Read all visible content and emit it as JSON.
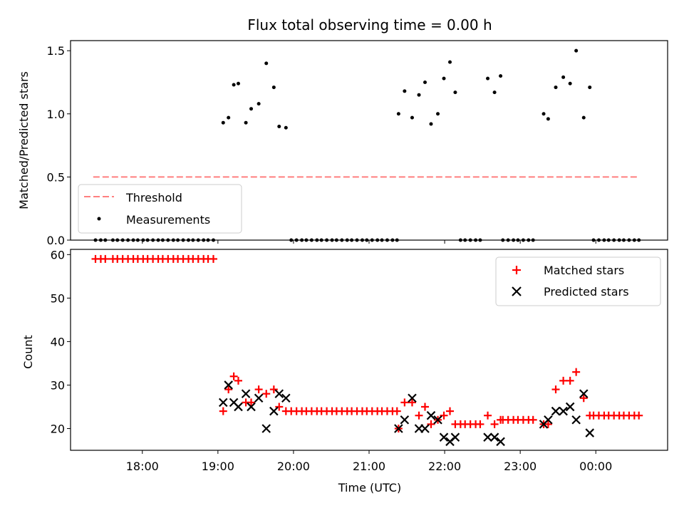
{
  "chart_data": [
    {
      "type": "scatter",
      "title": "Flux total observing time = 0.00 h",
      "xlabel": "",
      "ylabel": "Matched/Predicted stars",
      "x_unit": "hours since 00:00 UTC (day of start)",
      "xlim": [
        17.05,
        24.95
      ],
      "ylim": [
        0,
        1.58
      ],
      "yticks": [
        0.0,
        0.5,
        1.0,
        1.5
      ],
      "ytick_labels": [
        "0.0",
        "0.5",
        "1.0",
        "1.5"
      ],
      "threshold": {
        "name": "Threshold",
        "value": 0.5,
        "x_range": [
          17.35,
          24.55
        ],
        "color": "#ff7f7f"
      },
      "series": [
        {
          "name": "Measurements",
          "color": "#000000",
          "x": [
            17.38,
            17.45,
            17.51,
            17.61,
            17.67,
            17.74,
            17.81,
            17.88,
            17.94,
            18.01,
            18.07,
            18.14,
            18.21,
            18.27,
            18.34,
            18.41,
            18.47,
            18.54,
            18.61,
            18.67,
            18.74,
            18.81,
            18.87,
            18.94,
            19.07,
            19.14,
            19.21,
            19.27,
            19.37,
            19.44,
            19.54,
            19.64,
            19.74,
            19.81,
            19.9,
            19.97,
            20.04,
            20.11,
            20.17,
            20.24,
            20.31,
            20.37,
            20.44,
            20.51,
            20.57,
            20.64,
            20.71,
            20.77,
            20.84,
            20.91,
            20.97,
            21.04,
            21.11,
            21.17,
            21.24,
            21.31,
            21.37,
            21.39,
            21.47,
            21.57,
            21.66,
            21.74,
            21.82,
            21.91,
            21.99,
            22.07,
            22.14,
            22.21,
            22.27,
            22.34,
            22.41,
            22.47,
            22.57,
            22.66,
            22.74,
            22.77,
            22.84,
            22.91,
            22.97,
            23.04,
            23.11,
            23.17,
            23.31,
            23.37,
            23.47,
            23.57,
            23.66,
            23.74,
            23.84,
            23.92,
            23.97,
            24.04,
            24.11,
            24.17,
            24.24,
            24.31,
            24.37,
            24.44,
            24.51,
            24.57
          ],
          "y": [
            0,
            0,
            0,
            0,
            0,
            0,
            0,
            0,
            0,
            0,
            0,
            0,
            0,
            0,
            0,
            0,
            0,
            0,
            0,
            0,
            0,
            0,
            0,
            0,
            0.93,
            0.97,
            1.23,
            1.24,
            0.93,
            1.04,
            1.08,
            1.4,
            1.21,
            0.9,
            0.89,
            0,
            0,
            0,
            0,
            0,
            0,
            0,
            0,
            0,
            0,
            0,
            0,
            0,
            0,
            0,
            0,
            0,
            0,
            0,
            0,
            0,
            0,
            1.0,
            1.18,
            0.97,
            1.15,
            1.25,
            0.92,
            1.0,
            1.28,
            1.41,
            1.17,
            0,
            0,
            0,
            0,
            0,
            1.28,
            1.17,
            1.3,
            0,
            0,
            0,
            0,
            0,
            0,
            0,
            1.0,
            0.96,
            1.21,
            1.29,
            1.24,
            1.5,
            0.97,
            1.21,
            0,
            0,
            0,
            0,
            0,
            0,
            0,
            0,
            0,
            0
          ]
        }
      ],
      "legend": {
        "position": "lower-left",
        "entries": [
          "Threshold",
          "Measurements"
        ]
      }
    },
    {
      "type": "scatter",
      "title": "",
      "xlabel": "Time (UTC)",
      "ylabel": "Count",
      "x_unit": "hours since 00:00 UTC (day of start)",
      "xlim": [
        17.05,
        24.95
      ],
      "ylim": [
        15,
        61.2
      ],
      "yticks": [
        20,
        30,
        40,
        50,
        60
      ],
      "ytick_labels": [
        "20",
        "30",
        "40",
        "50",
        "60"
      ],
      "xticks": [
        18,
        19,
        20,
        21,
        22,
        23,
        24
      ],
      "xtick_labels": [
        "18:00",
        "19:00",
        "20:00",
        "21:00",
        "22:00",
        "23:00",
        "00:00"
      ],
      "series": [
        {
          "name": "Matched stars",
          "marker": "plus",
          "color": "#ff0000",
          "x": [
            17.38,
            17.45,
            17.51,
            17.61,
            17.67,
            17.74,
            17.81,
            17.88,
            17.94,
            18.01,
            18.07,
            18.14,
            18.21,
            18.27,
            18.34,
            18.41,
            18.47,
            18.54,
            18.61,
            18.67,
            18.74,
            18.81,
            18.87,
            18.94,
            19.07,
            19.14,
            19.21,
            19.27,
            19.37,
            19.44,
            19.54,
            19.64,
            19.74,
            19.81,
            19.9,
            19.97,
            20.04,
            20.11,
            20.17,
            20.24,
            20.31,
            20.37,
            20.44,
            20.51,
            20.57,
            20.64,
            20.71,
            20.77,
            20.84,
            20.91,
            20.97,
            21.04,
            21.11,
            21.17,
            21.24,
            21.31,
            21.37,
            21.39,
            21.47,
            21.57,
            21.66,
            21.74,
            21.82,
            21.91,
            21.99,
            22.07,
            22.14,
            22.21,
            22.27,
            22.34,
            22.41,
            22.47,
            22.57,
            22.66,
            22.74,
            22.77,
            22.84,
            22.91,
            22.97,
            23.04,
            23.11,
            23.17,
            23.31,
            23.37,
            23.47,
            23.57,
            23.66,
            23.74,
            23.84,
            23.92,
            23.97,
            24.04,
            24.11,
            24.17,
            24.24,
            24.31,
            24.37,
            24.44,
            24.51,
            24.57
          ],
          "y": [
            59,
            59,
            59,
            59,
            59,
            59,
            59,
            59,
            59,
            59,
            59,
            59,
            59,
            59,
            59,
            59,
            59,
            59,
            59,
            59,
            59,
            59,
            59,
            59,
            24,
            29,
            32,
            31,
            26,
            26,
            29,
            28,
            29,
            25,
            24,
            24,
            24,
            24,
            24,
            24,
            24,
            24,
            24,
            24,
            24,
            24,
            24,
            24,
            24,
            24,
            24,
            24,
            24,
            24,
            24,
            24,
            24,
            20,
            26,
            26,
            23,
            25,
            21,
            22,
            23,
            24,
            21,
            21,
            21,
            21,
            21,
            21,
            23,
            21,
            22,
            22,
            22,
            22,
            22,
            22,
            22,
            22,
            21,
            21,
            29,
            31,
            31,
            33,
            27,
            23,
            23,
            23,
            23,
            23,
            23,
            23,
            23,
            23,
            23,
            23
          ]
        },
        {
          "name": "Predicted stars",
          "marker": "x",
          "color": "#000000",
          "x": [
            19.07,
            19.14,
            19.21,
            19.27,
            19.37,
            19.44,
            19.54,
            19.64,
            19.74,
            19.81,
            19.9,
            21.39,
            21.47,
            21.57,
            21.66,
            21.74,
            21.82,
            21.91,
            21.99,
            22.07,
            22.14,
            22.57,
            22.66,
            22.74,
            23.31,
            23.37,
            23.47,
            23.57,
            23.66,
            23.74,
            23.84,
            23.92
          ],
          "y": [
            26,
            30,
            26,
            25,
            28,
            25,
            27,
            20,
            24,
            28,
            27,
            20,
            22,
            27,
            20,
            20,
            23,
            22,
            18,
            17,
            18,
            18,
            18,
            17,
            21,
            22,
            24,
            24,
            25,
            22,
            28,
            19
          ]
        }
      ],
      "legend": {
        "position": "upper-right",
        "entries": [
          "Matched stars",
          "Predicted stars"
        ]
      }
    }
  ]
}
